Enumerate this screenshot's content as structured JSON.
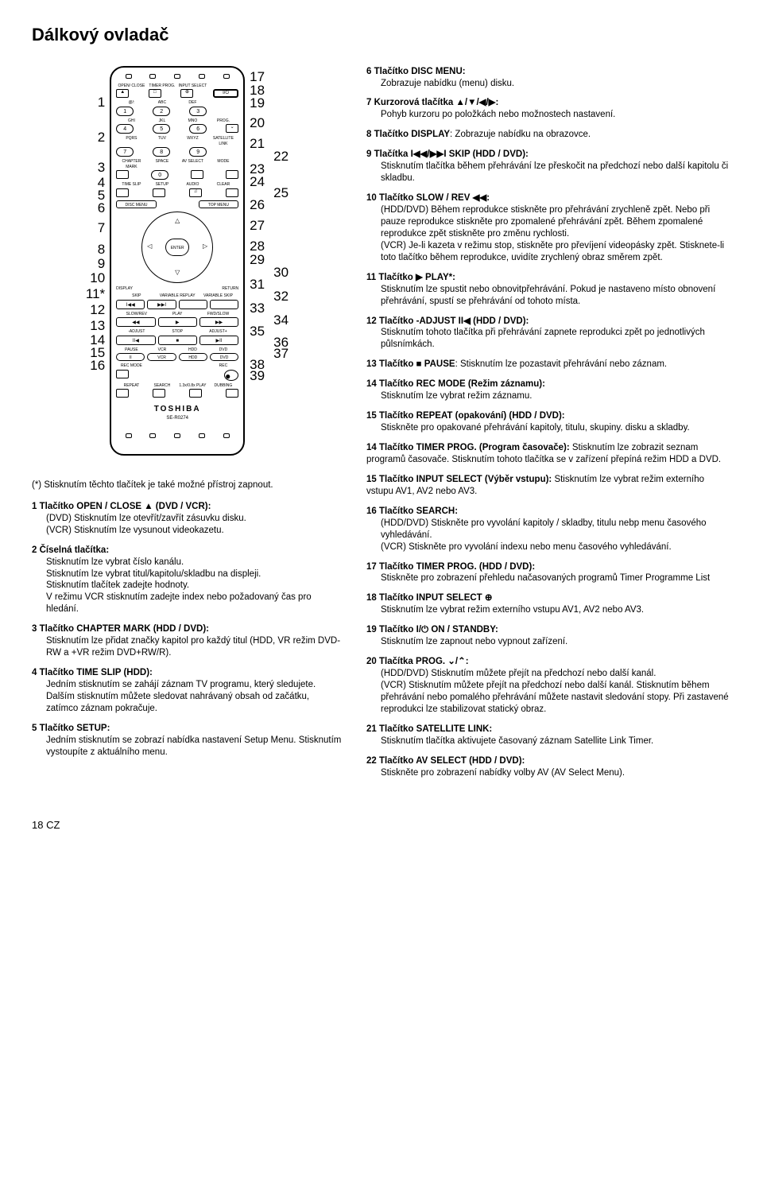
{
  "page_title": "Dálkový ovladač",
  "page_footer": "18  CZ",
  "footnote": "(*) Stisknutím těchto tlačítek je také možné přístroj zapnout.",
  "remote": {
    "brand": "TOSHIBA",
    "model": "SE-R0274",
    "row1_labels": [
      "OPEN/ CLOSE",
      "TIMER PROG.",
      "INPUT SELECT",
      ""
    ],
    "row1_btns": [
      "▲",
      "□",
      "⊕",
      "I/⏻"
    ],
    "abc_row": [
      "@/:",
      "ABC",
      "DEF",
      ""
    ],
    "num_123": [
      "1",
      "2",
      "3"
    ],
    "ghi_row": [
      "GHI",
      "JKL",
      "MNO",
      "PROG."
    ],
    "num_456": [
      "4",
      "5",
      "6"
    ],
    "prog_btn": "⌄",
    "pqrs_row": [
      "PQRS",
      "TUV",
      "WXYZ",
      "SATELLITE LINK"
    ],
    "num_789": [
      "7",
      "8",
      "9"
    ],
    "chapter_row": [
      "CHAPTER MARK",
      "SPACE",
      "AV SELECT",
      "MODE"
    ],
    "num_0": [
      "",
      "0",
      "",
      ""
    ],
    "slip_row": [
      "TIME SLIP",
      "SETUP",
      "AUDIO",
      "CLEAR"
    ],
    "menu_row": [
      "DISC MENU",
      "",
      "",
      "TOP MENU"
    ],
    "enter": "ENTER",
    "display": "DISPLAY",
    "return": "RETURN",
    "skip_label": "SKIP",
    "var_replay": "VARIABLE REPLAY",
    "var_skip": "VARIABLE SKIP",
    "skip_btns": [
      "I◀◀",
      "▶▶I"
    ],
    "slow_row": [
      "SLOW/REV",
      "PLAY",
      "FWD/SLOW"
    ],
    "play_btns": [
      "◀◀",
      "▶",
      "▶▶"
    ],
    "adjust_row": [
      "-ADJUST",
      "STOP",
      "ADJUST+"
    ],
    "adjust_btns": [
      "II◀",
      "■",
      "▶II"
    ],
    "pause_row": [
      "PAUSE",
      "VCR",
      "HDD",
      "DVD"
    ],
    "pause_btns": [
      "II",
      "",
      "",
      ""
    ],
    "recmode_row": [
      "REC MODE",
      "",
      "",
      "REC"
    ],
    "bottom_row": [
      "REPEAT",
      "SEARCH",
      "1.3x/0.8x PLAY",
      "DUBBING"
    ]
  },
  "callouts_left": [
    "1",
    "2",
    "3",
    "4",
    "5",
    "6",
    "7",
    "8",
    "9",
    "10",
    "11*",
    "12",
    "13",
    "14",
    "15",
    "16"
  ],
  "callouts_right_pairs": [
    [
      "17",
      ""
    ],
    [
      "18",
      ""
    ],
    [
      "19",
      ""
    ],
    [
      "20",
      ""
    ],
    [
      "21",
      ""
    ],
    [
      "",
      "22"
    ],
    [
      "23",
      ""
    ],
    [
      "24",
      ""
    ],
    [
      "",
      "25"
    ],
    [
      "26",
      ""
    ],
    [
      "27",
      ""
    ],
    [
      "28",
      ""
    ],
    [
      "29",
      ""
    ],
    [
      "",
      "30"
    ],
    [
      "31",
      ""
    ],
    [
      "",
      "32"
    ],
    [
      "33",
      ""
    ],
    [
      "",
      "34"
    ],
    [
      "35",
      ""
    ],
    [
      "",
      "36"
    ],
    [
      "",
      "37"
    ],
    [
      "38",
      ""
    ],
    [
      "39",
      ""
    ]
  ],
  "left_items": [
    {
      "num": "1",
      "title": "Tlačítko OPEN / CLOSE ▲ (DVD / VCR):",
      "body": "(DVD) Stisknutím lze otevřít/zavřít zásuvku disku.\n(VCR) Stisknutím lze vysunout videokazetu."
    },
    {
      "num": "2",
      "title": "Číselná tlačítka:",
      "body": "Stisknutím lze vybrat číslo kanálu.\nStisknutím lze vybrat titul/kapitolu/skladbu na displeji.\nStisknutím tlačítek zadejte hodnoty.\nV režimu VCR stisknutím zadejte index nebo požadovaný čas pro hledání."
    },
    {
      "num": "3",
      "title": "Tlačítko CHAPTER MARK (HDD / DVD):",
      "body": "Stisknutím lze přidat značky kapitol pro každý titul (HDD, VR režim DVD-RW a +VR režim DVD+RW/R)."
    },
    {
      "num": "4",
      "title": "Tlačítko TIME SLIP (HDD):",
      "body": "Jedním stisknutím se zahájí záznam TV programu, který sledujete. Dalším stisknutím můžete sledovat nahrávaný obsah od začátku, zatímco záznam pokračuje."
    },
    {
      "num": "5",
      "title": "Tlačítko SETUP:",
      "body": "Jedním stisknutím se zobrazí nabídka nastavení Setup Menu. Stisknutím vystoupíte z aktuálního menu."
    }
  ],
  "right_items": [
    {
      "num": "6",
      "title": "Tlačítko DISC MENU:",
      "body": "Zobrazuje nabídku (menu) disku."
    },
    {
      "num": "7",
      "title": "Kurzorová tlačítka ▲/▼/◀/▶:",
      "body": "Pohyb kurzoru po položkách nebo možnostech nastavení."
    },
    {
      "num": "8",
      "title": "Tlačítko DISPLAY",
      "body_inline": ": Zobrazuje nabídku na obrazovce."
    },
    {
      "num": "9",
      "title": "Tlačítka I◀◀/▶▶I SKIP (HDD / DVD):",
      "body": "Stisknutím tlačítka během přehrávání lze přeskočit na předchozí nebo další kapitolu či skladbu."
    },
    {
      "num": "10",
      "title": "Tlačítko SLOW / REV ◀◀:",
      "body": "(HDD/DVD) Během reprodukce stiskněte pro přehrávání zrychleně zpět. Nebo při pauze reprodukce stiskněte pro zpomalené přehrávání zpět. Během zpomalené reprodukce zpět stiskněte pro změnu rychlosti.\n(VCR) Je-li kazeta v režimu stop, stiskněte pro převíjení videopásky zpět. Stisknete-li toto tlačítko během reprodukce, uvidíte zrychlený obraz směrem zpět."
    },
    {
      "num": "11",
      "title": "Tlačítko ▶ PLAY*:",
      "body": "Stisknutím lze spustit nebo obnovitpřehrávání. Pokud je nastaveno místo obnovení přehrávání, spustí se přehrávání od tohoto místa."
    },
    {
      "num": "12",
      "title": "Tlačítko -ADJUST II◀ (HDD / DVD):",
      "body": "Stisknutím tohoto tlačítka při přehrávání zapnete reprodukci zpět po jednotlivých půlsnímkách."
    },
    {
      "num": "13",
      "title": "Tlačítko ■ PAUSE",
      "body_inline": ": Stisknutím lze pozastavit přehrávání nebo záznam."
    },
    {
      "num": "14",
      "title": "Tlačítko REC MODE (Režim záznamu):",
      "body": "Stisknutím lze vybrat režim záznamu."
    },
    {
      "num": "15",
      "title": "Tlačítko REPEAT (opakování) (HDD / DVD):",
      "body": "Stiskněte pro opakované přehrávání kapitoly, titulu, skupiny. disku a skladby."
    },
    {
      "num": "14",
      "title": "Tlačítko TIMER PROG. (Program časovače):",
      "body_inline": " Stisknutím lze zobrazit seznam programů časovače. Stisknutím tohoto tlačítka se v zařízení přepíná režim HDD a DVD."
    },
    {
      "num": "15",
      "title": "Tlačítko INPUT SELECT (Výběr vstupu):",
      "body_inline": " Stisknutím lze vybrat režim externího vstupu AV1, AV2 nebo AV3."
    },
    {
      "num": "16",
      "title": "Tlačítko SEARCH:",
      "body": "(HDD/DVD) Stiskněte pro vyvolání kapitoly / skladby, titulu nebp menu časového vyhledávání.\n(VCR) Stiskněte pro vyvolání indexu nebo menu časového vyhledávání."
    },
    {
      "num": "17",
      "title": "Tlačítko TIMER PROG. (HDD / DVD):",
      "body": "Stiskněte pro zobrazení přehledu načasovaných programů Timer Programme List"
    },
    {
      "num": "18",
      "title": "Tlačítko INPUT SELECT  ⊕",
      "body": "Stisknutím lze vybrat režim externího vstupu AV1, AV2 nebo AV3."
    },
    {
      "num": "19",
      "title": "Tlačítko I/⏻ ON / STANDBY:",
      "body": "Stisknutím lze zapnout nebo vypnout zařízení."
    },
    {
      "num": "20",
      "title": "Tlačítka PROG. ⌄/⌃:",
      "body": "(HDD/DVD) Stisknutím můžete přejít na předchozí nebo další kanál.\n(VCR) Stisknutím můžete přejít na předchozí nebo další kanál. Stisknutím během přehrávání nebo pomalého přehrávání můžete nastavit sledování stopy. Při zastavené reprodukci lze stabilizovat statický obraz."
    },
    {
      "num": "21",
      "title": "Tlačítko SATELLITE LINK:",
      "body": "Stisknutím tlačítka aktivujete časovaný záznam Satellite Link Timer."
    },
    {
      "num": "22",
      "title": "Tlačítko AV SELECT (HDD / DVD):",
      "body": "Stiskněte pro zobrazení nabídky volby AV (AV Select Menu)."
    }
  ]
}
